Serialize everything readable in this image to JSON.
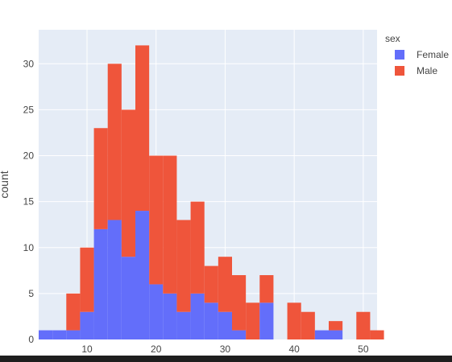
{
  "chart_data": {
    "type": "bar",
    "barmode": "stack",
    "legend_title": "sex",
    "xlabel": "",
    "ylabel": "count",
    "xlim": [
      3,
      52
    ],
    "ylim": [
      0,
      33.7
    ],
    "xticks": [
      10,
      20,
      30,
      40,
      50
    ],
    "yticks": [
      0,
      5,
      10,
      15,
      20,
      25,
      30
    ],
    "grid": true,
    "legend_position": "top-right",
    "bin_width": 2,
    "bin_start": 3,
    "series": [
      {
        "name": "Female",
        "color": "#636efa",
        "values": [
          1,
          1,
          1,
          3,
          12,
          13,
          9,
          14,
          6,
          5,
          3,
          5,
          4,
          3,
          1,
          0,
          4,
          0,
          0,
          0,
          1,
          1,
          0,
          0,
          0
        ]
      },
      {
        "name": "Male",
        "color": "#ef553b",
        "values": [
          0,
          0,
          4,
          7,
          11,
          17,
          16,
          18,
          14,
          15,
          10,
          10,
          4,
          6,
          6,
          4,
          3,
          0,
          4,
          3,
          0,
          1,
          0,
          3,
          1
        ]
      }
    ]
  }
}
